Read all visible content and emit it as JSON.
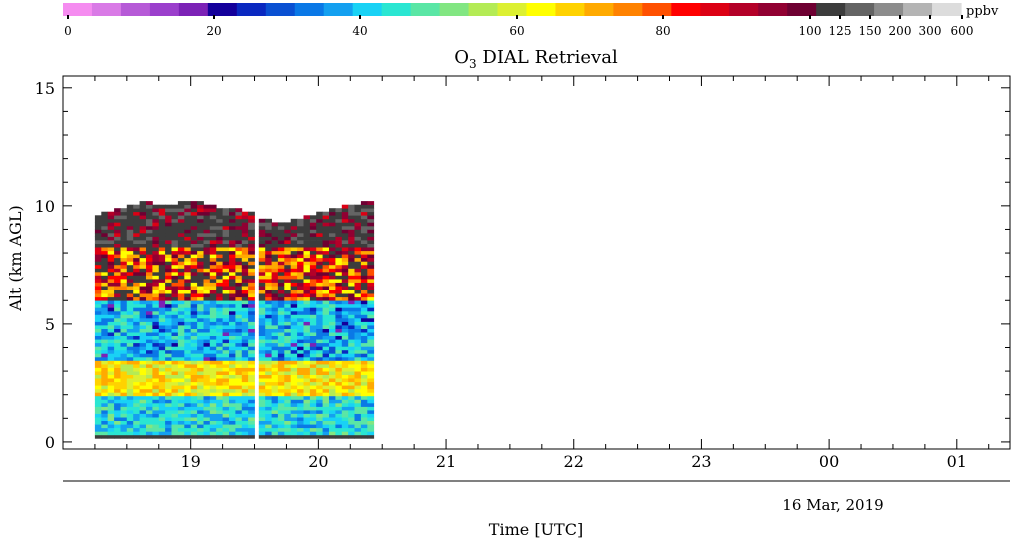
{
  "chart_data": {
    "type": "heatmap",
    "title": "O3 DIAL Retrieval",
    "title_main": "O",
    "title_sub": "3",
    "title_rest": " DIAL Retrieval",
    "xlabel": "Time [UTC]",
    "ylabel": "Alt (km AGL)",
    "date_label": "16 Mar, 2019",
    "x_axis": {
      "range": [
        "18:00",
        "01:25"
      ],
      "tick_labels": [
        "19",
        "20",
        "21",
        "22",
        "23",
        "00",
        "01"
      ]
    },
    "y_axis": {
      "range": [
        -0.3,
        15.5
      ],
      "ticks": [
        0,
        5,
        10,
        15
      ],
      "tick_labels": [
        "0",
        "5",
        "10",
        "15"
      ]
    },
    "colorbar": {
      "unit": "ppbv",
      "tick_labels": [
        "0",
        "20",
        "40",
        "60",
        "80",
        "100",
        "125",
        "150",
        "200",
        "300",
        "600"
      ],
      "colors": [
        "#f58cf0",
        "#d97ae6",
        "#b65ad7",
        "#9b3fcc",
        "#7c22b6",
        "#14009b",
        "#0a28c0",
        "#0a50d2",
        "#0a78e6",
        "#14a0f0",
        "#19d2f5",
        "#2ae6d2",
        "#5ae6a5",
        "#82e682",
        "#b4eb55",
        "#dcf032",
        "#ffff00",
        "#ffd200",
        "#ffaa00",
        "#ff8200",
        "#ff5000",
        "#ff0000",
        "#dc0014",
        "#b40028",
        "#910032",
        "#6e0032",
        "#3c3c3c",
        "#646464",
        "#8c8c8c",
        "#b4b4b4",
        "#dcdcdc"
      ]
    },
    "profiles": [
      {
        "start": "18:15",
        "end": "19:30",
        "top_km": [
          9.6,
          9.8,
          10.0,
          10.1,
          9.9,
          10.2,
          10.1,
          9.9,
          9.8,
          9.7
        ]
      },
      {
        "start": "19:32",
        "end": "20:27",
        "top_km": [
          9.4,
          9.2,
          9.3,
          9.5,
          9.7,
          9.9,
          10.0,
          10.1
        ]
      }
    ],
    "bands": [
      {
        "from_km": 0.2,
        "to_km": 1.9,
        "ppbv": 42
      },
      {
        "from_km": 1.9,
        "to_km": 3.3,
        "ppbv": 64
      },
      {
        "from_km": 3.3,
        "to_km": 5.9,
        "ppbv": 40
      },
      {
        "from_km": 5.9,
        "to_km": 8.2,
        "ppbv": 86
      },
      {
        "from_km": 8.2,
        "to_km": 10.2,
        "ppbv": 110
      }
    ]
  }
}
